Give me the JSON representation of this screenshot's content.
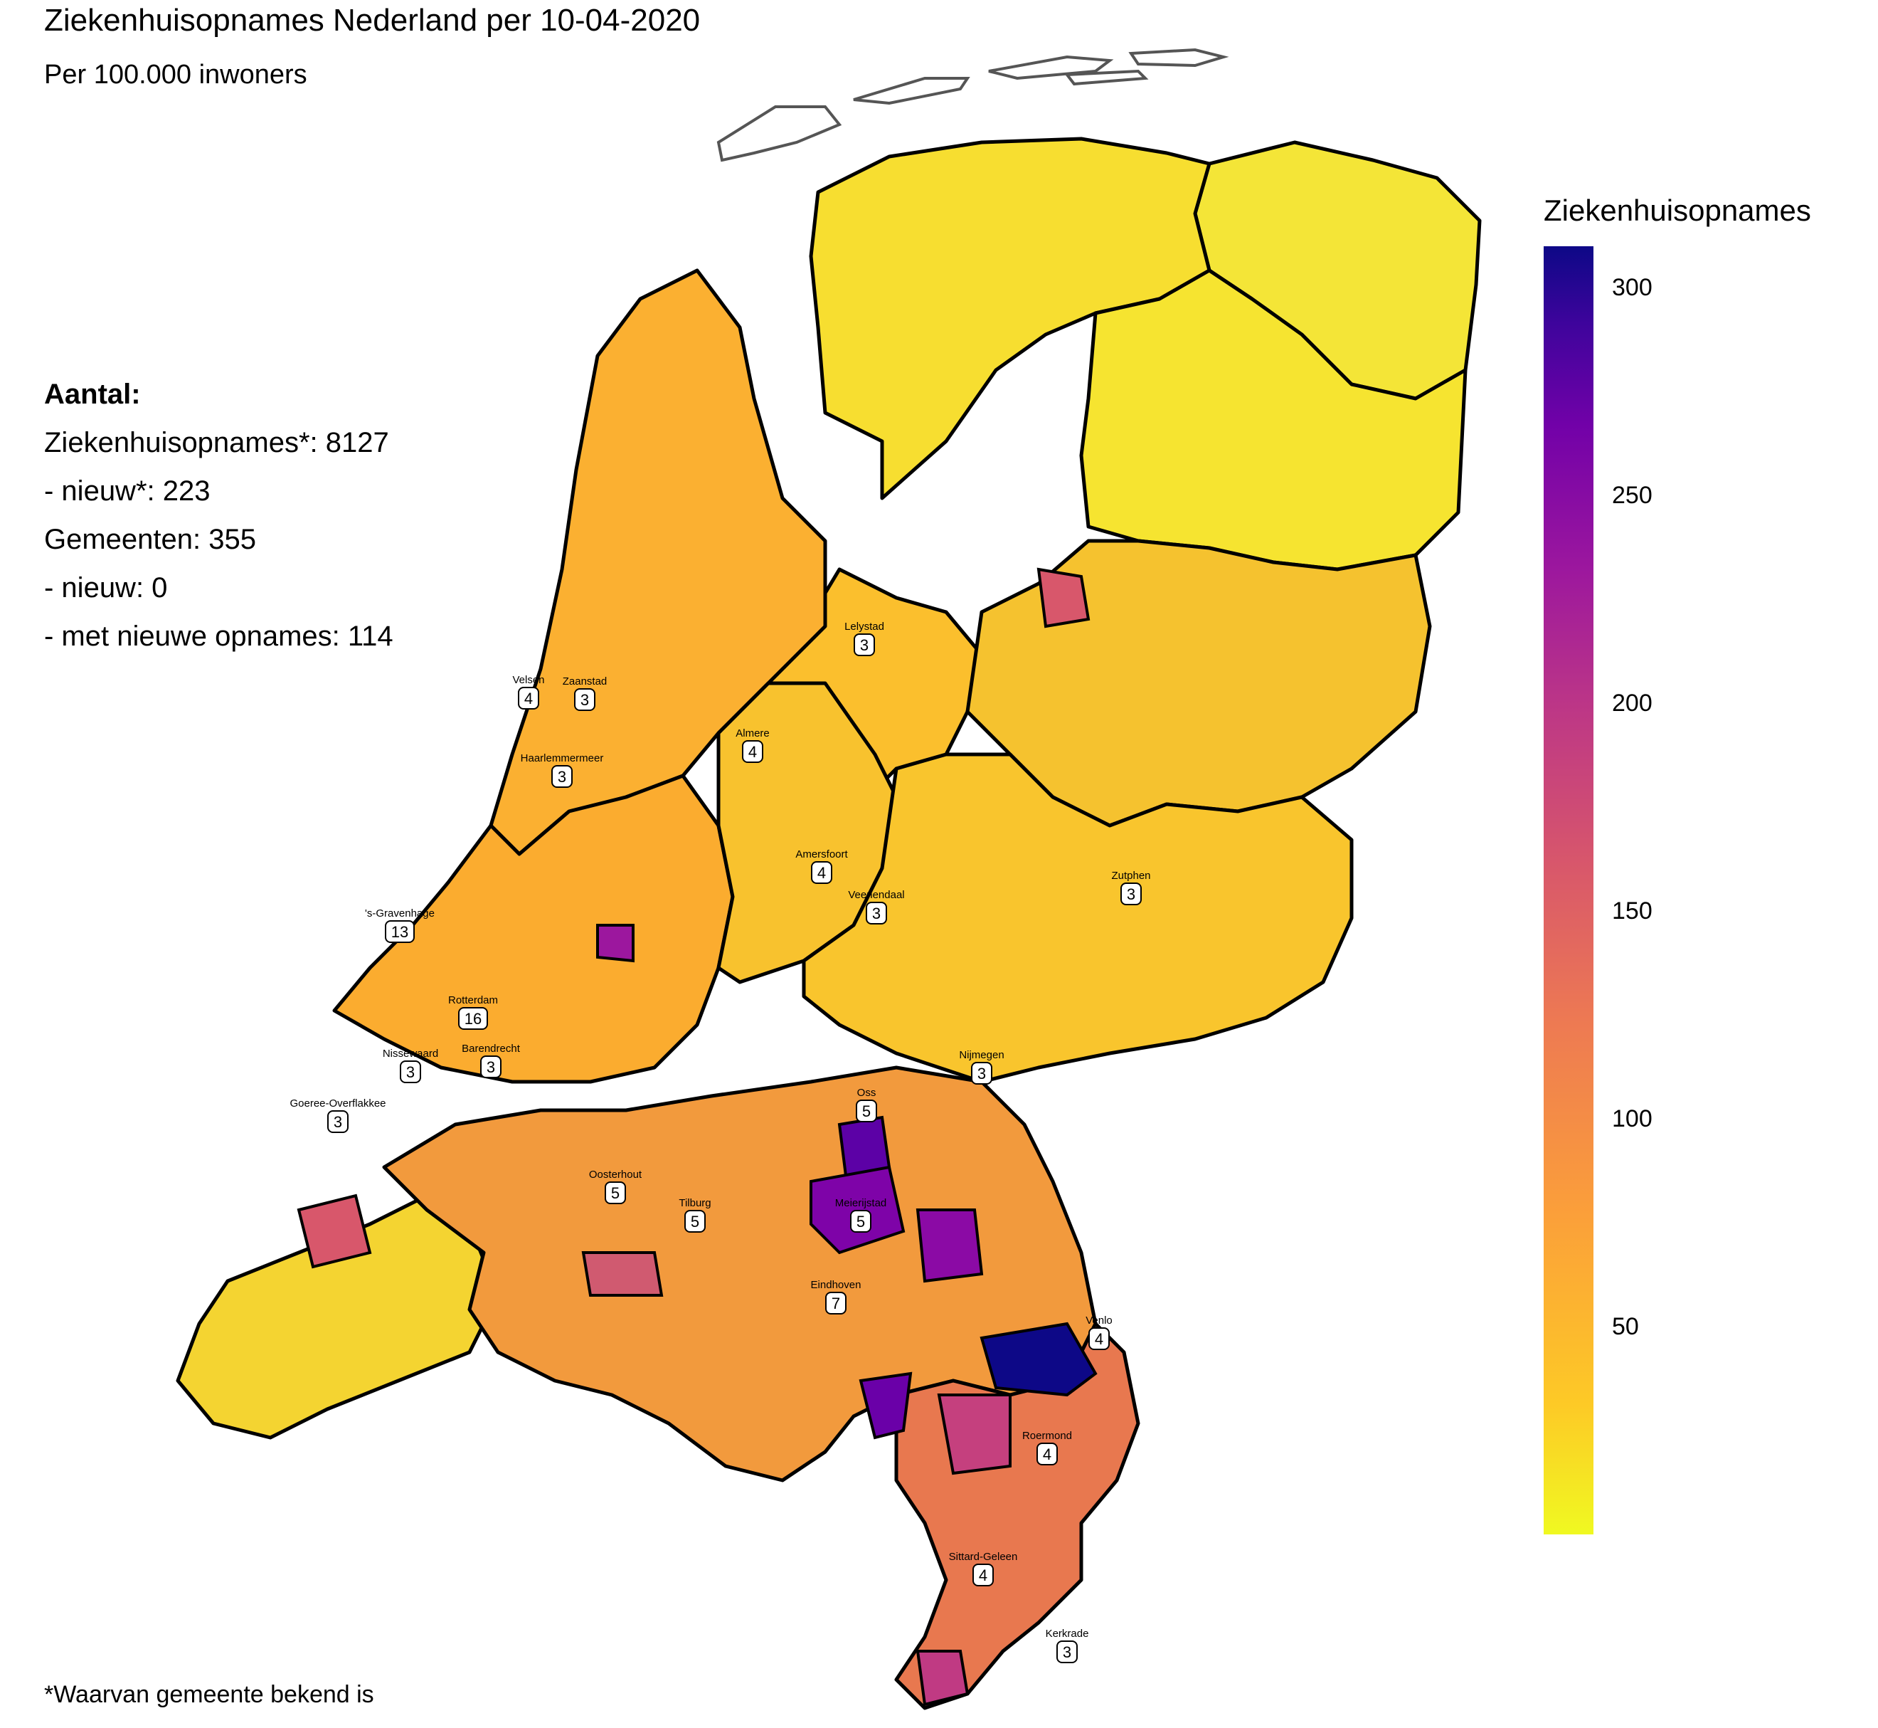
{
  "title": "Ziekenhuisopnames Nederland per 10-04-2020",
  "subtitle": "Per 100.000 inwoners",
  "stats": {
    "heading": "Aantal:",
    "lines": [
      "Ziekenhuisopnames*: 8127",
      "- nieuw*: 223",
      "Gemeenten: 355",
      "- nieuw: 0",
      "- met nieuwe opnames: 114"
    ]
  },
  "footnote": "*Waarvan gemeente bekend is",
  "legend": {
    "title": "Ziekenhuisopnames",
    "ticks": [
      "300",
      "250",
      "200",
      "150",
      "100",
      "50"
    ],
    "tick_values": [
      300,
      250,
      200,
      150,
      100,
      50
    ],
    "min": 0,
    "max": 310,
    "colors": {
      "low": "#f0f921",
      "high": "#0d0887"
    }
  },
  "city_labels": [
    {
      "name": "Lelystad",
      "count": "3"
    },
    {
      "name": "Velsen",
      "count": "4"
    },
    {
      "name": "Zaanstad",
      "count": "3"
    },
    {
      "name": "Almere",
      "count": "4"
    },
    {
      "name": "Haarlemmermeer",
      "count": "3"
    },
    {
      "name": "Amersfoort",
      "count": "4"
    },
    {
      "name": "Zutphen",
      "count": "3"
    },
    {
      "name": "'s-Gravenhage",
      "count": "13"
    },
    {
      "name": "Veenendaal",
      "count": "3"
    },
    {
      "name": "Rotterdam",
      "count": "16"
    },
    {
      "name": "Barendrecht",
      "count": "3"
    },
    {
      "name": "Nissewaard",
      "count": "3"
    },
    {
      "name": "Nijmegen",
      "count": "3"
    },
    {
      "name": "Goeree-Overflakkee",
      "count": "3"
    },
    {
      "name": "Oss",
      "count": "5"
    },
    {
      "name": "Oosterhout",
      "count": "5"
    },
    {
      "name": "Tilburg",
      "count": "5"
    },
    {
      "name": "Meierijstad",
      "count": "5"
    },
    {
      "name": "Eindhoven",
      "count": "7"
    },
    {
      "name": "Venlo",
      "count": "4"
    },
    {
      "name": "Roermond",
      "count": "4"
    },
    {
      "name": "Sittard-Geleen",
      "count": "4"
    },
    {
      "name": "Kerkrade",
      "count": "3"
    }
  ]
}
